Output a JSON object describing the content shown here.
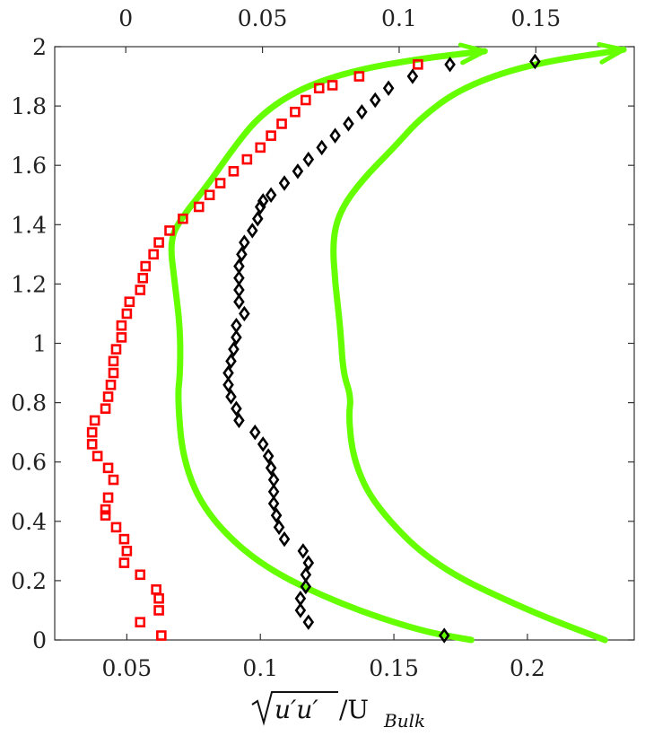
{
  "chart_data": {
    "type": "scatter",
    "title": "",
    "xlabel": {
      "radicand": "u′u′",
      "divider": "/U",
      "subscript": "Bulk"
    },
    "ylabel": "",
    "bottom_axis": {
      "range": [
        0.023,
        0.24
      ],
      "ticks": [
        0.05,
        0.1,
        0.15,
        0.2
      ],
      "tick_labels": [
        "0.05",
        "0.1",
        "0.15",
        "0.2"
      ]
    },
    "top_axis": {
      "range": [
        -0.026,
        0.186
      ],
      "ticks": [
        0,
        0.05,
        0.1,
        0.15
      ],
      "tick_labels": [
        "0",
        "0.05",
        "0.1",
        "0.15"
      ]
    },
    "y_axis": {
      "range": [
        0,
        2
      ],
      "ticks": [
        0,
        0.2,
        0.4,
        0.6,
        0.8,
        1,
        1.2,
        1.4,
        1.6,
        1.8,
        2
      ],
      "tick_labels": [
        "0",
        "0.2",
        "0.4",
        "0.6",
        "0.8",
        "1",
        "1.2",
        "1.4",
        "1.6",
        "1.8",
        "2"
      ]
    },
    "grid": false,
    "series": [
      {
        "marker": "square",
        "color": "#ff0000",
        "axis": "bottom",
        "points": [
          [
            0.055,
            0.06
          ],
          [
            0.062,
            0.1
          ],
          [
            0.062,
            0.14
          ],
          [
            0.061,
            0.17
          ],
          [
            0.055,
            0.22
          ],
          [
            0.049,
            0.26
          ],
          [
            0.05,
            0.3
          ],
          [
            0.049,
            0.34
          ],
          [
            0.046,
            0.38
          ],
          [
            0.042,
            0.42
          ],
          [
            0.042,
            0.44
          ],
          [
            0.043,
            0.48
          ],
          [
            0.045,
            0.54
          ],
          [
            0.043,
            0.58
          ],
          [
            0.039,
            0.62
          ],
          [
            0.037,
            0.66
          ],
          [
            0.037,
            0.7
          ],
          [
            0.038,
            0.74
          ],
          [
            0.042,
            0.78
          ],
          [
            0.043,
            0.82
          ],
          [
            0.044,
            0.86
          ],
          [
            0.045,
            0.9
          ],
          [
            0.045,
            0.94
          ],
          [
            0.046,
            0.98
          ],
          [
            0.048,
            1.02
          ],
          [
            0.048,
            1.06
          ],
          [
            0.05,
            1.1
          ],
          [
            0.051,
            1.14
          ],
          [
            0.055,
            1.18
          ],
          [
            0.056,
            1.22
          ],
          [
            0.057,
            1.26
          ],
          [
            0.06,
            1.3
          ],
          [
            0.062,
            1.34
          ],
          [
            0.066,
            1.38
          ],
          [
            0.071,
            1.42
          ],
          [
            0.077,
            1.46
          ],
          [
            0.081,
            1.5
          ],
          [
            0.085,
            1.54
          ],
          [
            0.09,
            1.58
          ],
          [
            0.095,
            1.62
          ],
          [
            0.1,
            1.66
          ],
          [
            0.104,
            1.7
          ],
          [
            0.108,
            1.74
          ],
          [
            0.113,
            1.78
          ],
          [
            0.117,
            1.82
          ],
          [
            0.122,
            1.86
          ],
          [
            0.127,
            1.87
          ],
          [
            0.137,
            1.9
          ],
          [
            0.159,
            1.94
          ]
        ]
      },
      {
        "marker": "square",
        "color": "#ff0000",
        "axis": "top",
        "points": [
          [
            0.013,
            0.015
          ]
        ]
      },
      {
        "marker": "diamond",
        "color": "#000000",
        "axis": "bottom",
        "points": [
          [
            0.118,
            0.06
          ],
          [
            0.115,
            0.1
          ],
          [
            0.115,
            0.14
          ],
          [
            0.117,
            0.18
          ],
          [
            0.117,
            0.22
          ],
          [
            0.118,
            0.26
          ],
          [
            0.116,
            0.3
          ],
          [
            0.109,
            0.34
          ],
          [
            0.107,
            0.38
          ],
          [
            0.106,
            0.42
          ],
          [
            0.105,
            0.46
          ],
          [
            0.105,
            0.5
          ],
          [
            0.105,
            0.54
          ],
          [
            0.104,
            0.58
          ],
          [
            0.103,
            0.62
          ],
          [
            0.101,
            0.66
          ],
          [
            0.098,
            0.7
          ],
          [
            0.092,
            0.74
          ],
          [
            0.091,
            0.78
          ],
          [
            0.089,
            0.82
          ],
          [
            0.088,
            0.86
          ],
          [
            0.088,
            0.9
          ],
          [
            0.089,
            0.94
          ],
          [
            0.09,
            0.98
          ],
          [
            0.091,
            1.02
          ],
          [
            0.091,
            1.06
          ],
          [
            0.094,
            1.1
          ],
          [
            0.092,
            1.14
          ],
          [
            0.092,
            1.18
          ],
          [
            0.092,
            1.22
          ],
          [
            0.092,
            1.26
          ],
          [
            0.093,
            1.3
          ],
          [
            0.094,
            1.34
          ],
          [
            0.097,
            1.38
          ],
          [
            0.099,
            1.42
          ],
          [
            0.1,
            1.46
          ],
          [
            0.101,
            1.48
          ],
          [
            0.104,
            1.5
          ],
          [
            0.109,
            1.54
          ],
          [
            0.114,
            1.58
          ],
          [
            0.118,
            1.62
          ],
          [
            0.123,
            1.66
          ],
          [
            0.128,
            1.7
          ],
          [
            0.133,
            1.74
          ],
          [
            0.138,
            1.78
          ],
          [
            0.143,
            1.82
          ],
          [
            0.148,
            1.86
          ],
          [
            0.157,
            1.9
          ],
          [
            0.171,
            1.94
          ]
        ]
      },
      {
        "marker": "diamond",
        "color": "#000000",
        "axis": "top",
        "points": [
          [
            0.1165,
            0.015
          ],
          [
            0.1497,
            1.95
          ]
        ]
      },
      {
        "marker": "line",
        "color": "#66ff00",
        "axis": "bottom",
        "arrow_end": true,
        "points": [
          [
            0.179,
            0.0
          ],
          [
            0.16,
            0.03
          ],
          [
            0.13,
            0.12
          ],
          [
            0.1,
            0.25
          ],
          [
            0.08,
            0.42
          ],
          [
            0.071,
            0.6
          ],
          [
            0.069,
            0.82
          ],
          [
            0.07,
            0.9
          ],
          [
            0.07,
            1.05
          ],
          [
            0.068,
            1.2
          ],
          [
            0.066,
            1.35
          ],
          [
            0.071,
            1.43
          ],
          [
            0.08,
            1.53
          ],
          [
            0.09,
            1.66
          ],
          [
            0.1,
            1.77
          ],
          [
            0.115,
            1.86
          ],
          [
            0.135,
            1.92
          ],
          [
            0.16,
            1.96
          ],
          [
            0.184,
            1.985
          ]
        ]
      },
      {
        "marker": "line",
        "color": "#66ff00",
        "axis": "bottom",
        "arrow_end": true,
        "points": [
          [
            0.229,
            0.0
          ],
          [
            0.2,
            0.1
          ],
          [
            0.165,
            0.25
          ],
          [
            0.143,
            0.45
          ],
          [
            0.135,
            0.6
          ],
          [
            0.133,
            0.75
          ],
          [
            0.134,
            0.82
          ],
          [
            0.131,
            0.9
          ],
          [
            0.13,
            1.05
          ],
          [
            0.128,
            1.2
          ],
          [
            0.127,
            1.35
          ],
          [
            0.13,
            1.45
          ],
          [
            0.138,
            1.55
          ],
          [
            0.15,
            1.66
          ],
          [
            0.16,
            1.76
          ],
          [
            0.175,
            1.86
          ],
          [
            0.2,
            1.94
          ],
          [
            0.236,
            1.99
          ]
        ]
      }
    ]
  }
}
